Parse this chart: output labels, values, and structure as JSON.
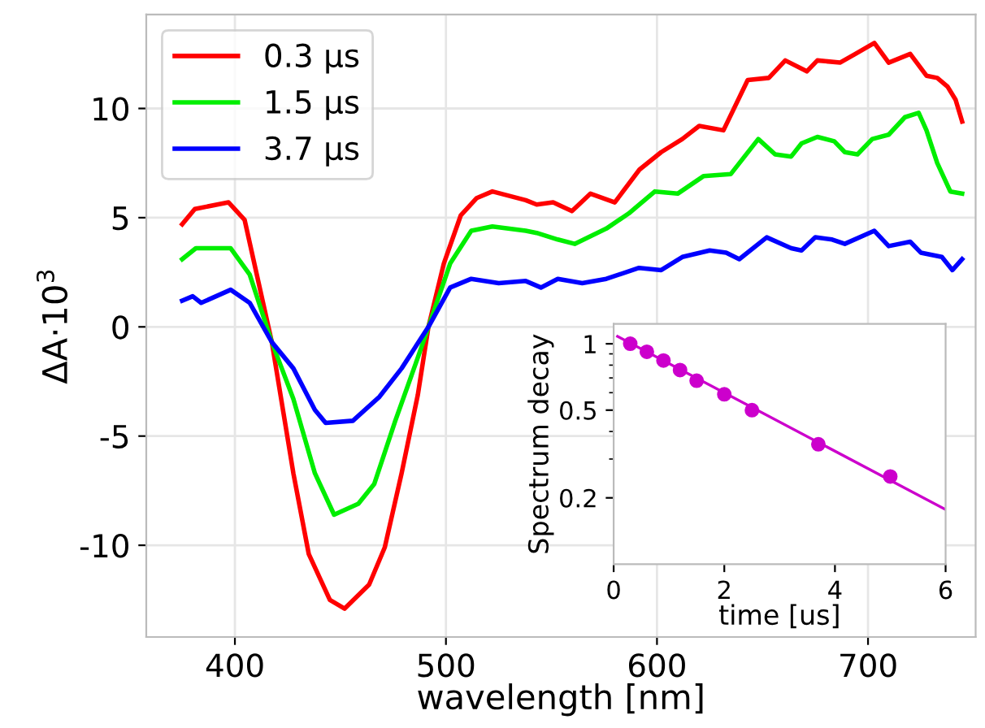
{
  "chart_data": [
    {
      "type": "line",
      "xlabel": "wavelength [nm]",
      "ylabel": "ΔA·10$^{3}$",
      "xlim": [
        358,
        751
      ],
      "ylim": [
        -14.2,
        14.3
      ],
      "xticks": [
        400,
        500,
        600,
        700
      ],
      "yticks": [
        -10,
        -5,
        0,
        5,
        10
      ],
      "grid": true,
      "legend": "top left",
      "marker": "none",
      "line_style": "solid",
      "series": [
        {
          "name": "0.3 μs",
          "color": "#ff0000",
          "x": [
            375,
            381,
            397,
            404.6,
            417.5,
            427.7,
            435,
            445,
            452,
            463.6,
            471,
            479,
            486.7,
            491.7,
            499,
            507,
            514.6,
            522,
            537.8,
            543,
            550.8,
            559.7,
            568.5,
            580,
            591.7,
            602,
            612,
            620,
            631.5,
            643,
            653,
            660.8,
            671,
            676,
            686.7,
            694,
            703,
            709.8,
            720,
            727.7,
            732.8,
            737.7,
            741.5,
            744.6
          ],
          "values": [
            4.7,
            5.4,
            5.7,
            4.9,
            -0.7,
            -6.7,
            -10.4,
            -12.5,
            -12.9,
            -11.8,
            -10.1,
            -6.7,
            -3.1,
            0,
            2.9,
            5.1,
            5.9,
            6.2,
            5.8,
            5.6,
            5.7,
            5.3,
            6.1,
            5.7,
            7.2,
            8.0,
            8.6,
            9.2,
            9.0,
            11.3,
            11.4,
            12.2,
            11.7,
            12.2,
            12.1,
            12.5,
            13.0,
            12.1,
            12.5,
            11.5,
            11.4,
            11.0,
            10.4,
            9.4
          ]
        },
        {
          "name": "1.5 μs",
          "color": "#00ee00",
          "x": [
            375,
            381.5,
            398,
            407,
            417.5,
            427.7,
            437.9,
            447,
            458.5,
            466,
            476,
            486.7,
            491.7,
            502,
            512,
            522,
            537.8,
            543,
            553,
            561,
            576,
            586.7,
            599,
            609.8,
            622,
            635,
            648,
            656,
            663.6,
            668.5,
            676,
            684,
            689,
            695,
            702,
            709.8,
            717.5,
            724,
            727.7,
            732.8,
            739,
            744.6
          ],
          "values": [
            3.1,
            3.6,
            3.6,
            2.4,
            -0.7,
            -3.3,
            -6.7,
            -8.6,
            -8.1,
            -7.2,
            -4.3,
            -1.4,
            0,
            2.9,
            4.4,
            4.6,
            4.4,
            4.3,
            4.0,
            3.8,
            4.5,
            5.2,
            6.2,
            6.1,
            6.9,
            7.0,
            8.6,
            7.9,
            7.8,
            8.4,
            8.7,
            8.5,
            8.0,
            7.9,
            8.6,
            8.8,
            9.6,
            9.8,
            9.0,
            7.5,
            6.2,
            6.1
          ]
        },
        {
          "name": "3.7 μs",
          "color": "#0000ff",
          "x": [
            375,
            380,
            384,
            398,
            407,
            417.5,
            427.7,
            437.9,
            443,
            455.9,
            468.5,
            479,
            491.7,
            502,
            512,
            525,
            537.8,
            545,
            553,
            564.6,
            576,
            591.5,
            602,
            612,
            625,
            632.8,
            639,
            652,
            663.6,
            668.5,
            675,
            683,
            689,
            703,
            709.8,
            720,
            725,
            735,
            740,
            744.6
          ],
          "values": [
            1.2,
            1.4,
            1.1,
            1.7,
            1.1,
            -0.7,
            -1.9,
            -3.8,
            -4.4,
            -4.3,
            -3.2,
            -1.9,
            0,
            1.8,
            2.2,
            2.0,
            2.1,
            1.8,
            2.2,
            2.0,
            2.2,
            2.7,
            2.6,
            3.2,
            3.5,
            3.4,
            3.1,
            4.1,
            3.6,
            3.5,
            4.1,
            4.0,
            3.8,
            4.4,
            3.7,
            3.9,
            3.4,
            3.2,
            2.6,
            3.1
          ]
        }
      ]
    },
    {
      "type": "scatter",
      "xlabel": "time [us]",
      "ylabel": "Spectrum decay",
      "xlim": [
        0,
        6
      ],
      "ylim": [
        0.1,
        1.23
      ],
      "xticks": [
        0,
        2,
        4,
        6
      ],
      "yticks": [
        0.2,
        0.5,
        1
      ],
      "log": "y",
      "grid": false,
      "series": [
        {
          "type": "scatter",
          "marker": "circle",
          "color": "#cc00cc",
          "x": [
            0.3,
            0.6,
            0.9,
            1.2,
            1.5,
            2.0,
            2.5,
            3.7,
            5.0
          ],
          "values": [
            1.0,
            0.92,
            0.84,
            0.76,
            0.68,
            0.59,
            0.5,
            0.35,
            0.25
          ]
        },
        {
          "type": "line",
          "marker": "none",
          "color": "#cc00cc",
          "x": [
            0.07,
            6
          ],
          "values": [
            1.08,
            0.177
          ]
        }
      ]
    }
  ]
}
